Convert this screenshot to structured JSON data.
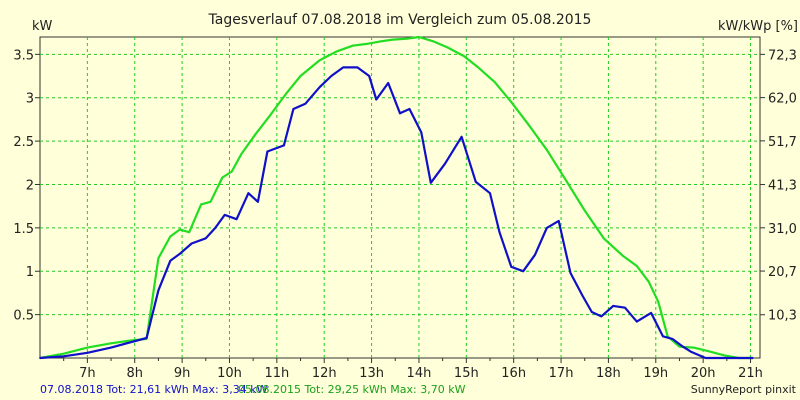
{
  "chart_data": {
    "type": "line",
    "title": "Tagesverlauf 07.08.2018 im Vergleich zum 05.08.2015",
    "ylabel_left": "kW",
    "ylabel_right": "kW/kWp [%]",
    "xlim": [
      6.0,
      21.2
    ],
    "ylim": [
      0,
      3.7
    ],
    "grid": true,
    "x_ticks": [
      7,
      8,
      9,
      10,
      11,
      12,
      13,
      14,
      15,
      16,
      17,
      18,
      19,
      20,
      21
    ],
    "x_tick_labels": [
      "7h",
      "8h",
      "9h",
      "10h",
      "11h",
      "12h",
      "13h",
      "14h",
      "15h",
      "16h",
      "17h",
      "18h",
      "19h",
      "20h",
      "21h"
    ],
    "y_ticks_left": [
      0.5,
      1,
      1.5,
      2,
      2.5,
      3,
      3.5
    ],
    "y_tick_labels_left": [
      "0.5",
      "1",
      "1.5",
      "2",
      "2.5",
      "3",
      "3.5"
    ],
    "y_ticks_right": [
      10.3,
      20.7,
      31.0,
      41.3,
      51.7,
      62.0,
      72.3
    ],
    "y_tick_labels_right": [
      "10,3",
      "20,7",
      "31,0",
      "41,3",
      "51,7",
      "62,0",
      "72,3"
    ],
    "series": [
      {
        "name": "07.08.2018",
        "color": "#1010c8",
        "x": [
          6.0,
          6.5,
          7.0,
          7.5,
          7.9,
          8.25,
          8.5,
          8.75,
          8.95,
          9.2,
          9.5,
          9.7,
          9.9,
          10.15,
          10.4,
          10.6,
          10.8,
          11.15,
          11.35,
          11.6,
          11.9,
          12.15,
          12.4,
          12.7,
          12.95,
          13.1,
          13.35,
          13.6,
          13.8,
          14.05,
          14.25,
          14.55,
          14.9,
          15.2,
          15.5,
          15.7,
          15.95,
          16.2,
          16.45,
          16.7,
          16.95,
          17.2,
          17.45,
          17.65,
          17.85,
          18.1,
          18.35,
          18.6,
          18.9,
          19.15,
          19.35,
          19.55,
          19.75,
          20.05,
          20.45,
          20.8,
          21.05
        ],
        "values": [
          0.0,
          0.02,
          0.06,
          0.12,
          0.18,
          0.23,
          0.78,
          1.12,
          1.2,
          1.32,
          1.38,
          1.5,
          1.65,
          1.6,
          1.9,
          1.8,
          2.38,
          2.45,
          2.87,
          2.93,
          3.12,
          3.25,
          3.35,
          3.35,
          3.25,
          2.98,
          3.17,
          2.82,
          2.87,
          2.6,
          2.02,
          2.24,
          2.55,
          2.03,
          1.9,
          1.45,
          1.05,
          1.0,
          1.19,
          1.5,
          1.58,
          0.98,
          0.72,
          0.53,
          0.48,
          0.6,
          0.58,
          0.42,
          0.52,
          0.25,
          0.22,
          0.14,
          0.07,
          0.0,
          0.0,
          0.0,
          0.0
        ]
      },
      {
        "name": "05.08.2015",
        "color": "#22dd22",
        "x": [
          6.0,
          6.5,
          7.0,
          7.5,
          7.9,
          8.25,
          8.5,
          8.75,
          8.95,
          9.15,
          9.4,
          9.6,
          9.85,
          10.05,
          10.25,
          10.55,
          10.85,
          11.2,
          11.5,
          11.9,
          12.25,
          12.6,
          12.9,
          13.2,
          13.45,
          13.75,
          14.0,
          14.3,
          14.6,
          14.95,
          15.25,
          15.6,
          15.95,
          16.3,
          16.7,
          17.1,
          17.5,
          17.9,
          18.3,
          18.6,
          18.85,
          19.05,
          19.25,
          19.5,
          19.8,
          20.1,
          20.45,
          20.75,
          21.05
        ],
        "values": [
          0.0,
          0.05,
          0.12,
          0.17,
          0.2,
          0.22,
          1.15,
          1.4,
          1.48,
          1.45,
          1.77,
          1.8,
          2.08,
          2.15,
          2.35,
          2.58,
          2.79,
          3.05,
          3.25,
          3.43,
          3.53,
          3.6,
          3.62,
          3.65,
          3.67,
          3.68,
          3.7,
          3.65,
          3.58,
          3.48,
          3.35,
          3.18,
          2.95,
          2.7,
          2.4,
          2.05,
          1.7,
          1.38,
          1.18,
          1.06,
          0.88,
          0.65,
          0.25,
          0.13,
          0.12,
          0.08,
          0.03,
          0.0,
          0.0
        ]
      }
    ],
    "footer_left": "07.08.2018 Tot: 21,61 kWh Max: 3,34 kW",
    "footer_mid": "05.08.2015 Tot: 29,25 kWh Max: 3,70 kW",
    "footer_right": "SunnyReport pinxit"
  }
}
